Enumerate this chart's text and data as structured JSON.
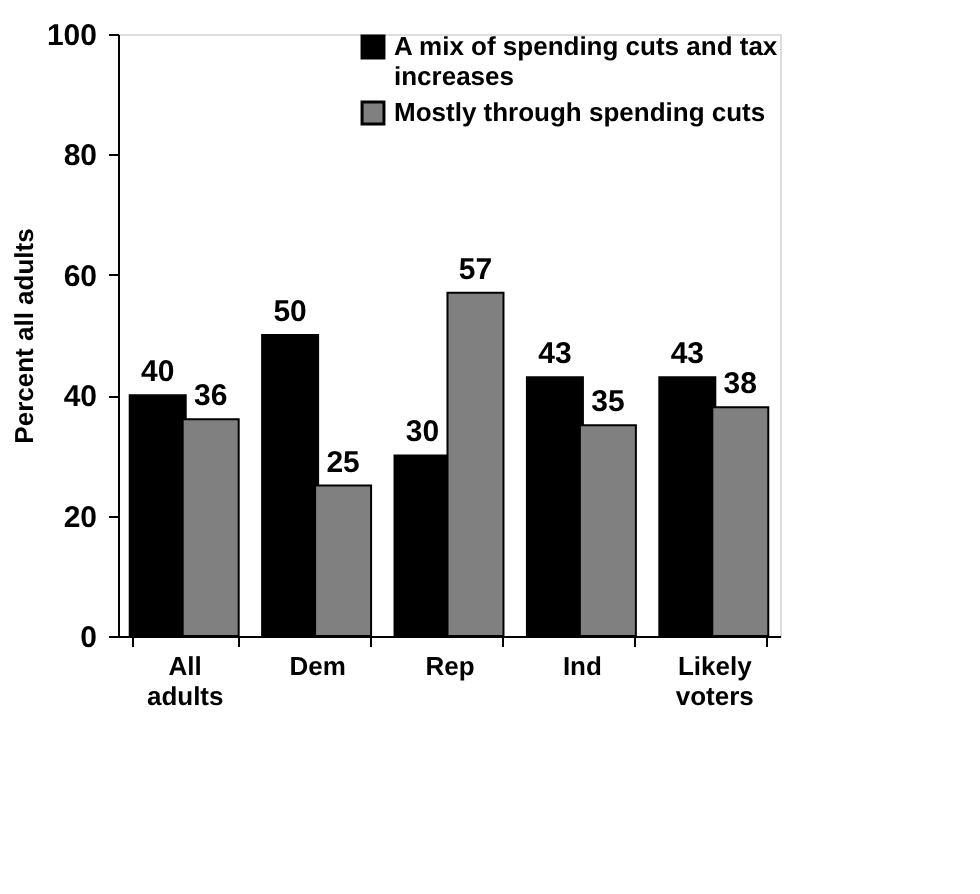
{
  "chart_data": {
    "type": "bar",
    "ylabel": "Percent all adults",
    "categories": [
      "All adults",
      "Dem",
      "Rep",
      "Ind",
      "Likely voters"
    ],
    "series": [
      {
        "name": "A mix of spending cuts and tax increases",
        "color": "#000000",
        "values": [
          40,
          50,
          30,
          43,
          43
        ]
      },
      {
        "name": "Mostly through spending cuts",
        "color": "#808080",
        "values": [
          36,
          25,
          57,
          35,
          38
        ]
      }
    ],
    "ylim": [
      0,
      100
    ],
    "yticks": [
      0,
      20,
      40,
      60,
      80,
      100
    ],
    "grid": false,
    "legend": "top right",
    "data_labels": true
  }
}
